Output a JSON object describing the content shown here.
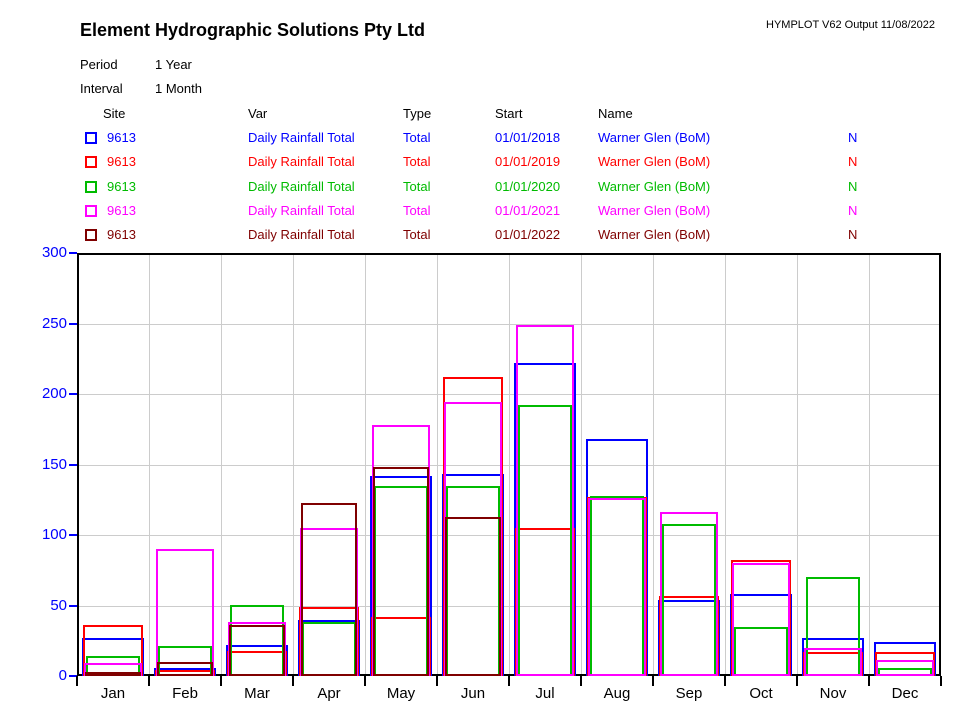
{
  "header": {
    "title": "Element Hydrographic Solutions Pty Ltd",
    "meta": "HYMPLOT V62  Output 11/08/2022"
  },
  "settings": {
    "period_label": "Period",
    "period_value": "1 Year",
    "interval_label": "Interval",
    "interval_value": "1 Month"
  },
  "legend": {
    "columns": [
      "Site",
      "Var",
      "Type",
      "Start",
      "Name"
    ],
    "rows": [
      {
        "site": "9613",
        "var": "Daily Rainfall Total",
        "type": "Total",
        "start": "01/01/2018",
        "name": "Warner Glen (BoM)",
        "flag": "N",
        "color": "#0000ff"
      },
      {
        "site": "9613",
        "var": "Daily Rainfall Total",
        "type": "Total",
        "start": "01/01/2019",
        "name": "Warner Glen (BoM)",
        "flag": "N",
        "color": "#ff0000"
      },
      {
        "site": "9613",
        "var": "Daily Rainfall Total",
        "type": "Total",
        "start": "01/01/2020",
        "name": "Warner Glen (BoM)",
        "flag": "N",
        "color": "#00bb00"
      },
      {
        "site": "9613",
        "var": "Daily Rainfall Total",
        "type": "Total",
        "start": "01/01/2021",
        "name": "Warner Glen (BoM)",
        "flag": "N",
        "color": "#ff00ff"
      },
      {
        "site": "9613",
        "var": "Daily Rainfall Total",
        "type": "Total",
        "start": "01/01/2022",
        "name": "Warner Glen (BoM)",
        "flag": "N",
        "color": "#7f0000"
      }
    ]
  },
  "chart_data": {
    "type": "bar",
    "title": "",
    "xlabel": "",
    "ylabel": "",
    "categories": [
      "Jan",
      "Feb",
      "Mar",
      "Apr",
      "May",
      "Jun",
      "Jul",
      "Aug",
      "Sep",
      "Oct",
      "Nov",
      "Dec"
    ],
    "series": [
      {
        "name": "2018",
        "color": "#0000ff",
        "values": [
          27,
          6,
          22,
          40,
          142,
          143,
          222,
          168,
          54,
          58,
          27,
          24
        ]
      },
      {
        "name": "2019",
        "color": "#ff0000",
        "values": [
          36,
          4,
          18,
          49,
          42,
          212,
          105,
          127,
          57,
          82,
          17,
          17
        ]
      },
      {
        "name": "2020",
        "color": "#00bb00",
        "values": [
          14,
          21,
          50,
          38,
          135,
          135,
          192,
          128,
          108,
          35,
          70,
          6
        ]
      },
      {
        "name": "2021",
        "color": "#ff00ff",
        "values": [
          9,
          90,
          38,
          105,
          178,
          194,
          249,
          126,
          116,
          80,
          20,
          11
        ]
      },
      {
        "name": "2022",
        "color": "#7f0000",
        "values": [
          3,
          10,
          36,
          123,
          148,
          113,
          null,
          null,
          null,
          null,
          null,
          null
        ]
      }
    ],
    "ylim": [
      0,
      300
    ],
    "yticks": [
      0,
      50,
      100,
      150,
      200,
      250,
      300
    ],
    "grid": true,
    "legend_position": "top-table",
    "bar_style": "outline",
    "axis_color": "#000000",
    "grid_color": "#cccccc",
    "ytick_label_color": "#0000ff",
    "xtick_label_color": "#000000"
  }
}
